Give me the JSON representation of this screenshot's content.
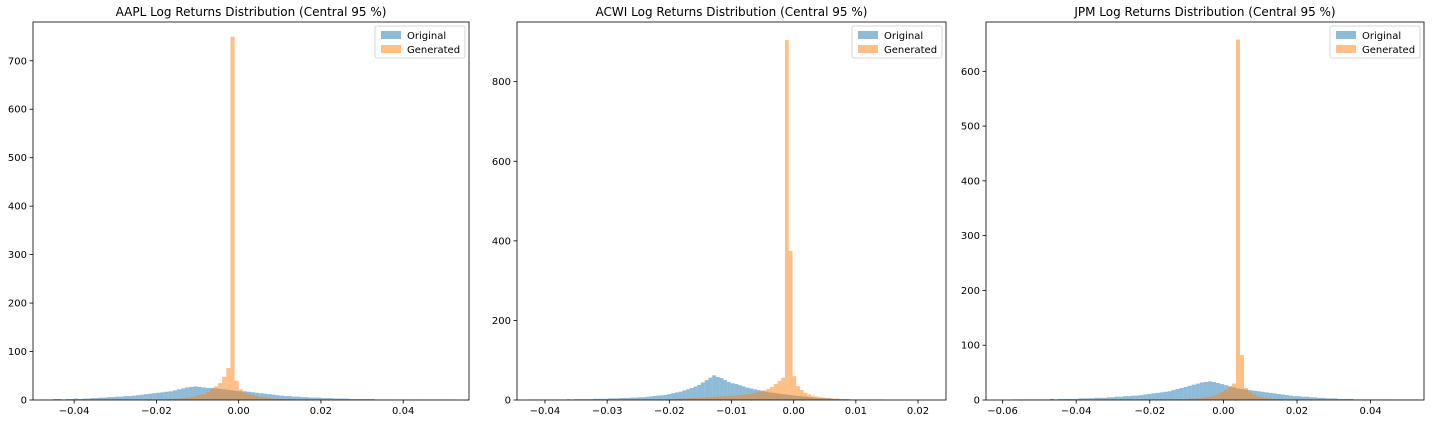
{
  "chart_data": [
    {
      "type": "histogram",
      "title": "AAPL Log Returns Distribution (Central 95 %)",
      "xlim": [
        -0.05,
        0.056
      ],
      "ylim": [
        0,
        780
      ],
      "xticks": [
        -0.04,
        -0.02,
        0.0,
        0.02,
        0.04
      ],
      "yticks": [
        0,
        100,
        200,
        300,
        400,
        500,
        600,
        700
      ],
      "legend": {
        "position": "top-right",
        "entries": [
          "Original",
          "Generated"
        ]
      },
      "series": [
        {
          "name": "Original",
          "color": "#1f77b4",
          "alpha": 0.5,
          "bin_start": -0.048,
          "bin_width": 0.001,
          "values": [
            1,
            1,
            1,
            2,
            2,
            1,
            2,
            2,
            3,
            2,
            3,
            3,
            4,
            4,
            5,
            5,
            6,
            6,
            7,
            7,
            8,
            8,
            9,
            10,
            11,
            12,
            13,
            14,
            15,
            16,
            17,
            18,
            20,
            22,
            24,
            26,
            27,
            28,
            27,
            26,
            25,
            25,
            24,
            23,
            22,
            21,
            20,
            19,
            18,
            18,
            17,
            16,
            15,
            14,
            13,
            12,
            11,
            10,
            9,
            8,
            8,
            7,
            7,
            6,
            6,
            5,
            5,
            5,
            4,
            4,
            4,
            3,
            3,
            3,
            3,
            2,
            2,
            2,
            2,
            2,
            2,
            1,
            1,
            1,
            1,
            1,
            1,
            1,
            1,
            1,
            1,
            1,
            1,
            1,
            1,
            1,
            1,
            1,
            1,
            1,
            1
          ]
        },
        {
          "name": "Generated",
          "color": "#ff7f0e",
          "alpha": 0.5,
          "bin_start": -0.025,
          "bin_width": 0.001,
          "values": [
            1,
            1,
            1,
            1,
            1,
            1,
            1,
            1,
            2,
            2,
            3,
            4,
            5,
            6,
            8,
            10,
            12,
            16,
            22,
            28,
            35,
            48,
            66,
            750,
            40,
            22,
            15,
            12,
            10,
            8,
            6,
            5,
            4,
            3,
            3,
            2,
            2,
            2,
            1,
            1,
            1,
            1,
            1,
            1,
            1,
            1,
            1,
            1,
            1,
            1
          ]
        }
      ]
    },
    {
      "type": "histogram",
      "title": "ACWI Log Returns Distribution (Central 95 %)",
      "xlim": [
        -0.0445,
        0.0245
      ],
      "ylim": [
        0,
        950
      ],
      "xticks": [
        -0.04,
        -0.03,
        -0.02,
        -0.01,
        0.0,
        0.01,
        0.02
      ],
      "yticks": [
        0,
        200,
        400,
        600,
        800
      ],
      "legend": {
        "position": "top-right",
        "entries": [
          "Original",
          "Generated"
        ]
      },
      "series": [
        {
          "name": "Original",
          "color": "#1f77b4",
          "alpha": 0.5,
          "bin_start": -0.0425,
          "bin_width": 0.0006,
          "values": [
            1,
            1,
            1,
            1,
            1,
            1,
            1,
            1,
            1,
            1,
            2,
            1,
            2,
            2,
            2,
            2,
            2,
            3,
            3,
            3,
            3,
            4,
            4,
            4,
            5,
            5,
            5,
            6,
            6,
            7,
            7,
            8,
            9,
            10,
            11,
            12,
            13,
            15,
            17,
            19,
            21,
            24,
            27,
            30,
            34,
            38,
            44,
            50,
            56,
            62,
            58,
            55,
            50,
            45,
            42,
            40,
            37,
            34,
            31,
            29,
            27,
            25,
            23,
            21,
            19,
            18,
            17,
            15,
            14,
            13,
            12,
            11,
            10,
            9,
            8,
            7,
            6,
            5,
            5,
            4,
            4,
            3,
            3,
            2,
            2,
            2,
            1,
            1,
            1,
            1,
            1,
            1,
            1,
            1,
            1
          ]
        },
        {
          "name": "Generated",
          "color": "#ff7f0e",
          "alpha": 0.5,
          "bin_start": -0.02,
          "bin_width": 0.0006,
          "values": [
            2,
            3,
            3,
            4,
            4,
            5,
            5,
            6,
            6,
            7,
            7,
            8,
            8,
            9,
            9,
            10,
            10,
            11,
            12,
            13,
            14,
            15,
            17,
            19,
            21,
            24,
            28,
            33,
            40,
            48,
            56,
            905,
            375,
            60,
            35,
            25,
            18,
            14,
            11,
            9,
            7,
            6,
            5,
            4,
            3,
            3,
            2,
            2,
            1,
            1,
            1,
            1,
            1,
            1,
            1
          ]
        }
      ]
    },
    {
      "type": "histogram",
      "title": "JPM Log Returns Distribution (Central 95 %)",
      "xlim": [
        -0.0645,
        0.0545
      ],
      "ylim": [
        0,
        690
      ],
      "xticks": [
        -0.06,
        -0.04,
        -0.02,
        0.0,
        0.02,
        0.04
      ],
      "yticks": [
        0,
        100,
        200,
        300,
        400,
        500,
        600
      ],
      "legend": {
        "position": "top-right",
        "entries": [
          "Original",
          "Generated"
        ]
      },
      "series": [
        {
          "name": "Original",
          "color": "#1f77b4",
          "alpha": 0.5,
          "bin_start": -0.057,
          "bin_width": 0.0011,
          "values": [
            1,
            1,
            1,
            1,
            1,
            1,
            1,
            1,
            1,
            2,
            1,
            2,
            2,
            2,
            2,
            2,
            3,
            3,
            3,
            3,
            4,
            4,
            4,
            5,
            5,
            6,
            6,
            7,
            7,
            8,
            8,
            9,
            10,
            11,
            12,
            13,
            14,
            15,
            16,
            18,
            20,
            22,
            24,
            26,
            28,
            30,
            32,
            33,
            34,
            33,
            31,
            29,
            27,
            25,
            23,
            21,
            20,
            19,
            18,
            17,
            16,
            15,
            14,
            13,
            12,
            11,
            10,
            9,
            8,
            7,
            7,
            6,
            6,
            5,
            5,
            4,
            4,
            3,
            3,
            3,
            2,
            2,
            2,
            2,
            1,
            1,
            1,
            1,
            1,
            1,
            1,
            1,
            1,
            1,
            1,
            1,
            1,
            1,
            1,
            1
          ]
        },
        {
          "name": "Generated",
          "color": "#ff7f0e",
          "alpha": 0.5,
          "bin_start": -0.012,
          "bin_width": 0.0011,
          "values": [
            1,
            1,
            2,
            2,
            3,
            4,
            5,
            6,
            8,
            10,
            14,
            18,
            24,
            30,
            658,
            82,
            22,
            14,
            10,
            7,
            5,
            4,
            3,
            2,
            2,
            1,
            1,
            1
          ]
        }
      ]
    }
  ]
}
